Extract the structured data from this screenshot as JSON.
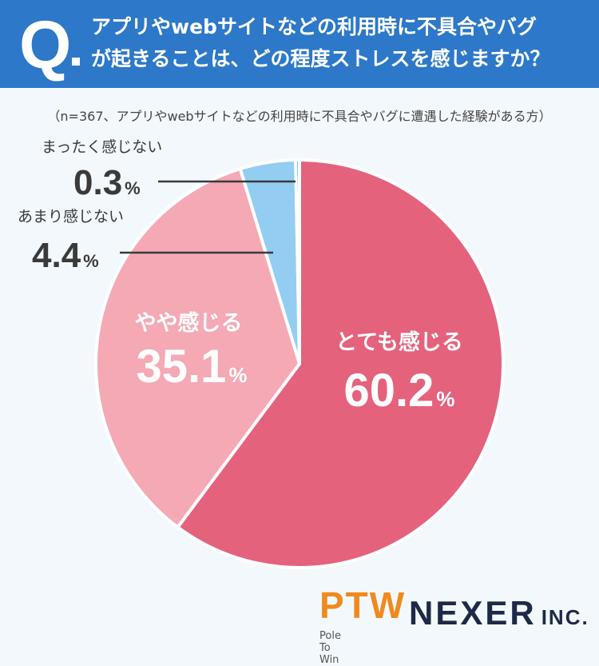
{
  "header": {
    "q_mark": "Q",
    "question_line1": "アプリやwebサイトなどの利用時に不具合やバグ",
    "question_line2": "が起きることは、どの程度ストレスを感じますか？"
  },
  "note": "（n=367、アプリやwebサイトなどの利用時に不具合やバグに遭遇した経験がある方）",
  "colors": {
    "header_bg": "#2d78c8",
    "slice_1": "#e5627d",
    "slice_2": "#f5a9b5",
    "slice_3": "#93cdf2",
    "slice_4": "#2f9fe0"
  },
  "chart_data": {
    "type": "pie",
    "title": "",
    "unit": "%",
    "start": "12 o'clock, clockwise",
    "slices": [
      {
        "label": "とても感じる",
        "value": 60.2,
        "color": "#e5627d"
      },
      {
        "label": "やや感じる",
        "value": 35.1,
        "color": "#f5a9b5"
      },
      {
        "label": "あまり感じない",
        "value": 4.4,
        "color": "#93cdf2"
      },
      {
        "label": "まったく感じない",
        "value": 0.3,
        "color": "#2f9fe0"
      }
    ]
  },
  "logos": {
    "ptw": "PTW",
    "ptw_sub": "Pole To Win",
    "nexer": "NEXER",
    "nexer_inc": "INC."
  }
}
